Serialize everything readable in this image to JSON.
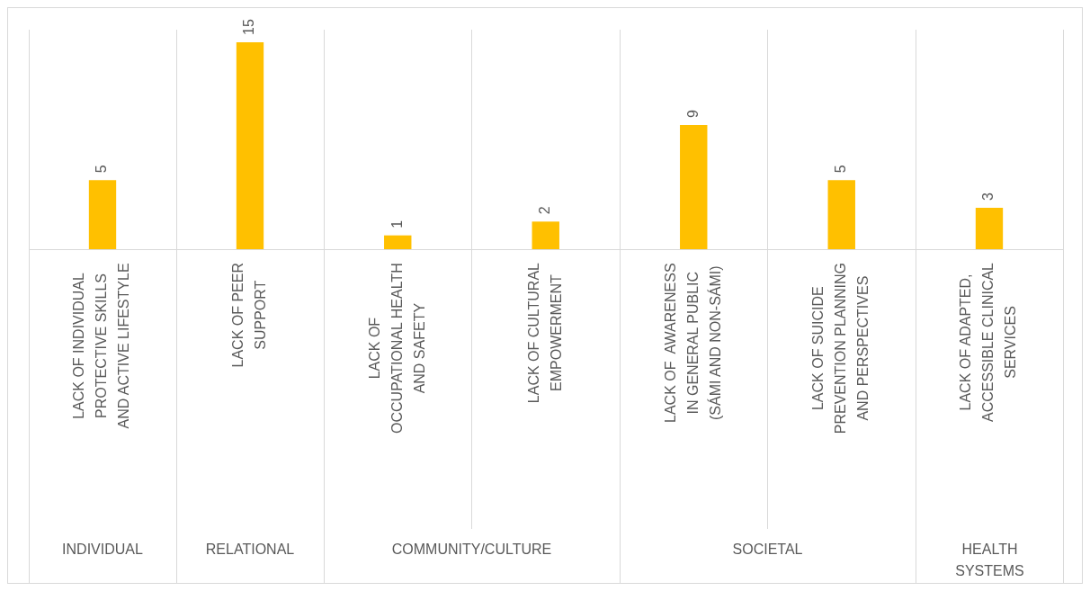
{
  "chart_data": [
    {
      "type": "bar",
      "title": "INDIVIDUAL",
      "categories": [
        "LACK OF INDIVIDUAL PROTECTIVE SKILLS AND ACTIVE LIFESTYLE"
      ],
      "values": [
        5
      ],
      "color": "#ffc000",
      "data_labels": true
    },
    {
      "type": "bar",
      "title": "RELATIONAL",
      "categories": [
        "LACK OF PEER SUPPORT"
      ],
      "values": [
        15
      ],
      "color": "#ffc000",
      "data_labels": true
    },
    {
      "type": "bar",
      "title": "COMMUNITY/CULTURE",
      "categories": [
        "LACK OF OCCUPATIONAL HEALTH AND SAFETY",
        "LACK OF CULTURAL EMPOWERMENT"
      ],
      "values": [
        1,
        2
      ],
      "color": "#ffc000",
      "data_labels": true
    },
    {
      "type": "bar",
      "title": "SOCIETAL",
      "categories": [
        "LACK OF  AWARENESS IN GENERAL PUBLIC (SÁMI AND NON-SÁMI)",
        "LACK OF SUICIDE PREVENTION PLANNING AND PERSPECTIVES"
      ],
      "values": [
        9,
        5
      ],
      "color": "#ffc000",
      "data_labels": true
    },
    {
      "type": "bar",
      "title": "HEALTH SYSTEMS",
      "categories": [
        "LACK OF ADAPTED, ACCESSIBLE CLINICAL SERVICES"
      ],
      "values": [
        3
      ],
      "color": "#ffc000",
      "data_labels": true
    }
  ]
}
